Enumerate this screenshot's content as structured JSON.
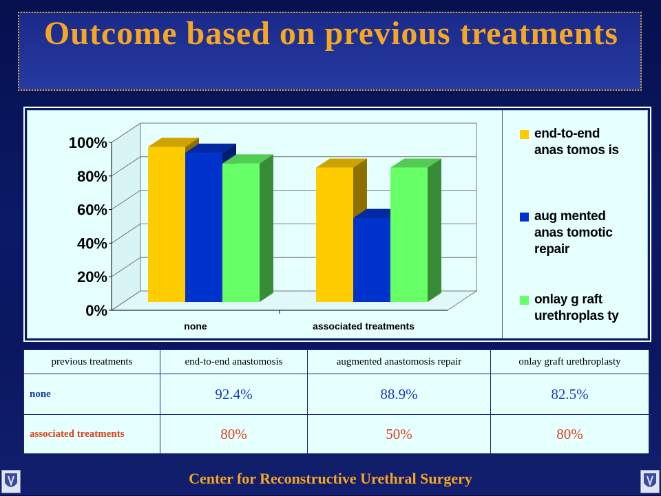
{
  "slide": {
    "title": "Outcome based on previous treatments",
    "footer": "Center for Reconstructive Urethral Surgery"
  },
  "colors": {
    "end_to_end": "#ffcc00",
    "augmented": "#0033cc",
    "onlay": "#66ff66",
    "title": "#f5a623",
    "row_none": "#1a3cb8",
    "row_associated": "#e0401a"
  },
  "chart_data": {
    "type": "bar",
    "style": "3d-clustered",
    "categories": [
      "none",
      "associated treatments"
    ],
    "series": [
      {
        "name": "end-to-end anastomosis",
        "values": [
          92.4,
          80
        ],
        "color": "#ffcc00"
      },
      {
        "name": "augmented anastomotic repair",
        "values": [
          88.9,
          50
        ],
        "color": "#0033cc"
      },
      {
        "name": "onlay graft urethroplasty",
        "values": [
          82.5,
          80
        ],
        "color": "#66ff66"
      }
    ],
    "yticks": [
      "0%",
      "20%",
      "40%",
      "60%",
      "80%",
      "100%"
    ],
    "ylim": [
      0,
      100
    ],
    "grid": true,
    "legend": "right",
    "legend_labels": [
      [
        "end-to-end",
        "anas tomos is"
      ],
      [
        "aug mented",
        "anas tomotic",
        "repair"
      ],
      [
        "onlay g raft",
        "urethroplas ty"
      ]
    ]
  },
  "table": {
    "headers": [
      "previous treatments",
      "end-to-end anastomosis",
      "augmented anastomosis repair",
      "onlay graft urethroplasty"
    ],
    "rows": [
      {
        "label": "none",
        "values": [
          "92.4%",
          "88.9%",
          "82.5%"
        ]
      },
      {
        "label": "associated treatments",
        "values": [
          "80%",
          "50%",
          "80%"
        ]
      }
    ]
  }
}
